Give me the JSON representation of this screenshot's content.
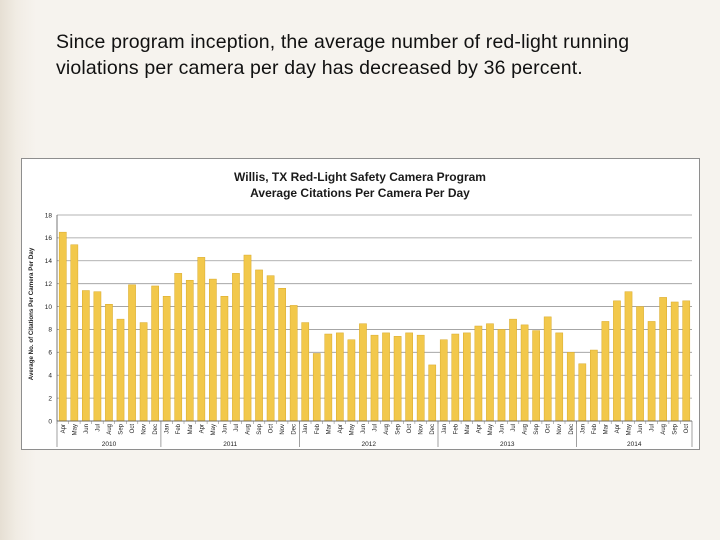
{
  "slide": {
    "caption": "Since program inception, the average number of red-light running violations per camera per day has decreased by 36 percent."
  },
  "colors": {
    "bar": "#f2c84b",
    "bar_stroke": "#d8a92a",
    "grid": "#9a9a9a"
  },
  "chart_data": {
    "type": "bar",
    "title": "Willis, TX Red-Light Safety Camera Program",
    "subtitle": "Average Citations Per Camera Per Day",
    "xlabel": "",
    "ylabel": "Average No. of Citations Per Camera Per Day",
    "ylim": [
      0,
      18
    ],
    "yticks": [
      0,
      2,
      4,
      6,
      8,
      10,
      12,
      14,
      16,
      18
    ],
    "grid": true,
    "categories": [
      "Apr",
      "May",
      "Jun",
      "Jul",
      "Aug",
      "Sep",
      "Oct",
      "Nov",
      "Dec",
      "Jan",
      "Feb",
      "Mar",
      "Apr",
      "May",
      "Jun",
      "Jul",
      "Aug",
      "Sep",
      "Oct",
      "Nov",
      "Dec",
      "Jan",
      "Feb",
      "Mar",
      "Apr",
      "May",
      "Jun",
      "Jul",
      "Aug",
      "Sep",
      "Oct",
      "Nov",
      "Dec",
      "Jan",
      "Feb",
      "Mar",
      "Apr",
      "May",
      "Jun",
      "Jul",
      "Aug",
      "Sep",
      "Oct",
      "Nov",
      "Dec",
      "Jan",
      "Feb",
      "Mar",
      "Apr",
      "May",
      "Jun",
      "Jul",
      "Aug",
      "Sep",
      "Oct"
    ],
    "values": [
      16.5,
      15.4,
      11.4,
      11.3,
      10.2,
      8.9,
      11.9,
      8.6,
      11.8,
      10.9,
      12.9,
      12.3,
      14.3,
      12.4,
      10.9,
      12.9,
      14.5,
      13.2,
      12.7,
      11.6,
      10.1,
      8.6,
      5.9,
      7.6,
      7.7,
      7.1,
      8.5,
      7.5,
      7.7,
      7.4,
      7.7,
      7.5,
      4.9,
      7.1,
      7.6,
      7.7,
      8.3,
      8.5,
      8.0,
      8.9,
      8.4,
      7.9,
      9.1,
      7.7,
      6.0,
      5.0,
      6.2,
      8.7,
      10.5,
      11.3,
      10.0,
      8.7,
      10.8,
      10.4,
      10.5
    ],
    "year_groups": [
      {
        "label": "2010",
        "start": 0,
        "count": 9
      },
      {
        "label": "2011",
        "start": 9,
        "count": 12
      },
      {
        "label": "2012",
        "start": 21,
        "count": 12
      },
      {
        "label": "2013",
        "start": 33,
        "count": 12
      },
      {
        "label": "2014",
        "start": 45,
        "count": 10
      }
    ]
  }
}
